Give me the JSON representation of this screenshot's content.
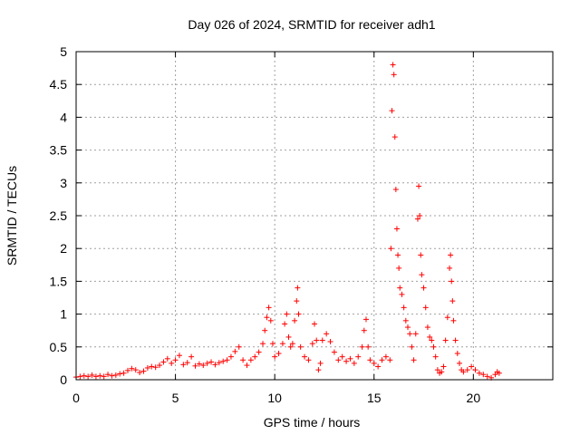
{
  "chart_data": {
    "type": "scatter",
    "title": "Day 026 of 2024, SRMTID for receiver adh1",
    "xlabel": "GPS time / hours",
    "ylabel": "SRMTID / TECUs",
    "xlim": [
      0,
      24
    ],
    "ylim": [
      0,
      5
    ],
    "xticks": [
      0,
      5,
      10,
      15,
      20
    ],
    "xtick_labels": [
      "0",
      "5",
      "10",
      "15",
      "20"
    ],
    "yticks": [
      0,
      0.5,
      1,
      1.5,
      2,
      2.5,
      3,
      3.5,
      4,
      4.5,
      5
    ],
    "ytick_labels": [
      "0",
      "0.5",
      "1",
      "1.5",
      "2",
      "2.5",
      "3",
      "3.5",
      "4",
      "4.5",
      "5"
    ],
    "grid": true,
    "marker": "+",
    "color": "#ff0000",
    "series": [
      {
        "name": "adh1",
        "points": [
          [
            0.0,
            0.04
          ],
          [
            0.2,
            0.05
          ],
          [
            0.4,
            0.06
          ],
          [
            0.6,
            0.05
          ],
          [
            0.8,
            0.07
          ],
          [
            1.0,
            0.05
          ],
          [
            1.2,
            0.06
          ],
          [
            1.4,
            0.05
          ],
          [
            1.6,
            0.08
          ],
          [
            1.8,
            0.06
          ],
          [
            2.0,
            0.07
          ],
          [
            2.2,
            0.09
          ],
          [
            2.4,
            0.1
          ],
          [
            2.6,
            0.14
          ],
          [
            2.8,
            0.17
          ],
          [
            3.0,
            0.15
          ],
          [
            3.2,
            0.11
          ],
          [
            3.4,
            0.13
          ],
          [
            3.6,
            0.18
          ],
          [
            3.8,
            0.2
          ],
          [
            4.0,
            0.19
          ],
          [
            4.2,
            0.22
          ],
          [
            4.4,
            0.27
          ],
          [
            4.6,
            0.32
          ],
          [
            4.8,
            0.25
          ],
          [
            5.0,
            0.3
          ],
          [
            5.2,
            0.37
          ],
          [
            5.4,
            0.23
          ],
          [
            5.6,
            0.26
          ],
          [
            5.8,
            0.35
          ],
          [
            6.0,
            0.21
          ],
          [
            6.2,
            0.24
          ],
          [
            6.4,
            0.22
          ],
          [
            6.6,
            0.25
          ],
          [
            6.8,
            0.27
          ],
          [
            7.0,
            0.23
          ],
          [
            7.2,
            0.26
          ],
          [
            7.4,
            0.28
          ],
          [
            7.6,
            0.3
          ],
          [
            7.8,
            0.35
          ],
          [
            8.0,
            0.43
          ],
          [
            8.2,
            0.5
          ],
          [
            8.4,
            0.3
          ],
          [
            8.6,
            0.22
          ],
          [
            8.8,
            0.3
          ],
          [
            9.0,
            0.35
          ],
          [
            9.2,
            0.42
          ],
          [
            9.4,
            0.55
          ],
          [
            9.5,
            0.75
          ],
          [
            9.6,
            0.95
          ],
          [
            9.7,
            1.1
          ],
          [
            9.8,
            0.9
          ],
          [
            9.9,
            0.55
          ],
          [
            10.0,
            0.35
          ],
          [
            10.2,
            0.4
          ],
          [
            10.4,
            0.55
          ],
          [
            10.5,
            0.85
          ],
          [
            10.6,
            1.0
          ],
          [
            10.7,
            0.65
          ],
          [
            10.8,
            0.5
          ],
          [
            10.9,
            0.55
          ],
          [
            11.0,
            0.9
          ],
          [
            11.1,
            1.2
          ],
          [
            11.15,
            1.4
          ],
          [
            11.2,
            1.0
          ],
          [
            11.3,
            0.5
          ],
          [
            11.5,
            0.35
          ],
          [
            11.7,
            0.3
          ],
          [
            11.9,
            0.55
          ],
          [
            12.0,
            0.85
          ],
          [
            12.1,
            0.6
          ],
          [
            12.2,
            0.15
          ],
          [
            12.3,
            0.25
          ],
          [
            12.4,
            0.6
          ],
          [
            12.6,
            0.7
          ],
          [
            12.8,
            0.58
          ],
          [
            13.0,
            0.42
          ],
          [
            13.2,
            0.3
          ],
          [
            13.4,
            0.35
          ],
          [
            13.6,
            0.28
          ],
          [
            13.8,
            0.32
          ],
          [
            14.0,
            0.25
          ],
          [
            14.2,
            0.35
          ],
          [
            14.4,
            0.5
          ],
          [
            14.5,
            0.75
          ],
          [
            14.6,
            0.92
          ],
          [
            14.7,
            0.5
          ],
          [
            14.8,
            0.3
          ],
          [
            15.0,
            0.25
          ],
          [
            15.2,
            0.2
          ],
          [
            15.4,
            0.3
          ],
          [
            15.6,
            0.35
          ],
          [
            15.8,
            0.3
          ],
          [
            15.85,
            2.0
          ],
          [
            15.9,
            4.1
          ],
          [
            15.95,
            4.8
          ],
          [
            16.0,
            4.65
          ],
          [
            16.05,
            3.7
          ],
          [
            16.1,
            2.9
          ],
          [
            16.15,
            2.3
          ],
          [
            16.2,
            1.9
          ],
          [
            16.25,
            1.7
          ],
          [
            16.3,
            1.4
          ],
          [
            16.4,
            1.3
          ],
          [
            16.5,
            1.1
          ],
          [
            16.6,
            0.9
          ],
          [
            16.7,
            0.8
          ],
          [
            16.8,
            0.7
          ],
          [
            16.9,
            0.5
          ],
          [
            17.0,
            0.3
          ],
          [
            17.1,
            0.7
          ],
          [
            17.2,
            2.45
          ],
          [
            17.25,
            2.95
          ],
          [
            17.3,
            2.5
          ],
          [
            17.35,
            1.9
          ],
          [
            17.4,
            1.6
          ],
          [
            17.5,
            1.4
          ],
          [
            17.6,
            1.1
          ],
          [
            17.7,
            0.8
          ],
          [
            17.8,
            0.65
          ],
          [
            17.9,
            0.6
          ],
          [
            18.0,
            0.5
          ],
          [
            18.1,
            0.35
          ],
          [
            18.2,
            0.15
          ],
          [
            18.3,
            0.1
          ],
          [
            18.4,
            0.12
          ],
          [
            18.5,
            0.2
          ],
          [
            18.6,
            0.6
          ],
          [
            18.7,
            0.95
          ],
          [
            18.8,
            1.7
          ],
          [
            18.85,
            1.9
          ],
          [
            18.9,
            1.5
          ],
          [
            18.95,
            1.2
          ],
          [
            19.0,
            0.9
          ],
          [
            19.1,
            0.6
          ],
          [
            19.2,
            0.4
          ],
          [
            19.3,
            0.25
          ],
          [
            19.4,
            0.15
          ],
          [
            19.5,
            0.12
          ],
          [
            19.7,
            0.15
          ],
          [
            19.9,
            0.2
          ],
          [
            20.1,
            0.15
          ],
          [
            20.3,
            0.1
          ],
          [
            20.5,
            0.08
          ],
          [
            20.7,
            0.05
          ],
          [
            20.9,
            0.03
          ],
          [
            21.1,
            0.08
          ],
          [
            21.2,
            0.12
          ],
          [
            21.3,
            0.1
          ]
        ]
      }
    ]
  }
}
